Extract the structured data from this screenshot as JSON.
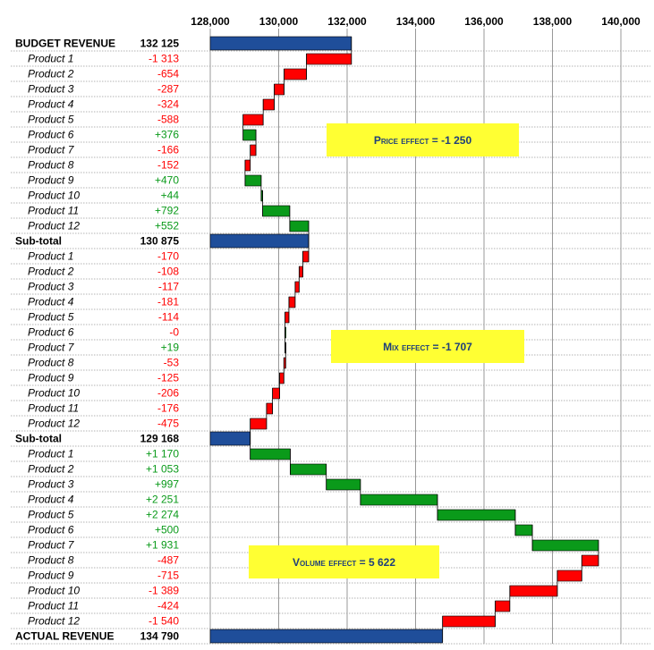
{
  "chart_data": {
    "type": "bar",
    "subtype": "waterfall",
    "x_ticks": [
      128000,
      130000,
      132000,
      134000,
      136000,
      138000,
      140000
    ],
    "x_tick_labels": [
      "128,000",
      "130,000",
      "132,000",
      "134,000",
      "136,000",
      "138,000",
      "140,000"
    ],
    "xlim": [
      128000,
      140000
    ],
    "colors": {
      "total": "#1f4e9a",
      "positive": "#0a9a1a",
      "negative": "#ff0000"
    },
    "rows": [
      {
        "label": "BUDGET REVENUE",
        "display": "132 125",
        "value": 132125,
        "kind": "total"
      },
      {
        "label": "Product 1",
        "display": "-1 313",
        "value": -1313,
        "kind": "delta"
      },
      {
        "label": "Product 2",
        "display": "-654",
        "value": -654,
        "kind": "delta"
      },
      {
        "label": "Product 3",
        "display": "-287",
        "value": -287,
        "kind": "delta"
      },
      {
        "label": "Product 4",
        "display": "-324",
        "value": -324,
        "kind": "delta"
      },
      {
        "label": "Product 5",
        "display": "-588",
        "value": -588,
        "kind": "delta"
      },
      {
        "label": "Product 6",
        "display": "+376",
        "value": 376,
        "kind": "delta"
      },
      {
        "label": "Product 7",
        "display": "-166",
        "value": -166,
        "kind": "delta"
      },
      {
        "label": "Product 8",
        "display": "-152",
        "value": -152,
        "kind": "delta"
      },
      {
        "label": "Product 9",
        "display": "+470",
        "value": 470,
        "kind": "delta"
      },
      {
        "label": "Product 10",
        "display": "+44",
        "value": 44,
        "kind": "delta"
      },
      {
        "label": "Product 11",
        "display": "+792",
        "value": 792,
        "kind": "delta"
      },
      {
        "label": "Product 12",
        "display": "+552",
        "value": 552,
        "kind": "delta"
      },
      {
        "label": "Sub-total",
        "display": "130 875",
        "value": 130875,
        "kind": "total"
      },
      {
        "label": "Product 1",
        "display": "-170",
        "value": -170,
        "kind": "delta"
      },
      {
        "label": "Product 2",
        "display": "-108",
        "value": -108,
        "kind": "delta"
      },
      {
        "label": "Product 3",
        "display": "-117",
        "value": -117,
        "kind": "delta"
      },
      {
        "label": "Product 4",
        "display": "-181",
        "value": -181,
        "kind": "delta"
      },
      {
        "label": "Product 5",
        "display": "-114",
        "value": -114,
        "kind": "delta"
      },
      {
        "label": "Product 6",
        "display": "-0",
        "value": 0,
        "kind": "delta"
      },
      {
        "label": "Product 7",
        "display": "+19",
        "value": 19,
        "kind": "delta"
      },
      {
        "label": "Product 8",
        "display": "-53",
        "value": -53,
        "kind": "delta"
      },
      {
        "label": "Product 9",
        "display": "-125",
        "value": -125,
        "kind": "delta"
      },
      {
        "label": "Product 10",
        "display": "-206",
        "value": -206,
        "kind": "delta"
      },
      {
        "label": "Product 11",
        "display": "-176",
        "value": -176,
        "kind": "delta"
      },
      {
        "label": "Product 12",
        "display": "-475",
        "value": -475,
        "kind": "delta"
      },
      {
        "label": "Sub-total",
        "display": "129 168",
        "value": 129168,
        "kind": "total"
      },
      {
        "label": "Product 1",
        "display": "+1 170",
        "value": 1170,
        "kind": "delta"
      },
      {
        "label": "Product 2",
        "display": "+1 053",
        "value": 1053,
        "kind": "delta"
      },
      {
        "label": "Product 3",
        "display": "+997",
        "value": 997,
        "kind": "delta"
      },
      {
        "label": "Product 4",
        "display": "+2 251",
        "value": 2251,
        "kind": "delta"
      },
      {
        "label": "Product 5",
        "display": "+2 274",
        "value": 2274,
        "kind": "delta"
      },
      {
        "label": "Product 6",
        "display": "+500",
        "value": 500,
        "kind": "delta"
      },
      {
        "label": "Product 7",
        "display": "+1 931",
        "value": 1931,
        "kind": "delta"
      },
      {
        "label": "Product 8",
        "display": "-487",
        "value": -487,
        "kind": "delta"
      },
      {
        "label": "Product 9",
        "display": "-715",
        "value": -715,
        "kind": "delta"
      },
      {
        "label": "Product 10",
        "display": "-1 389",
        "value": -1389,
        "kind": "delta"
      },
      {
        "label": "Product 11",
        "display": "-424",
        "value": -424,
        "kind": "delta"
      },
      {
        "label": "Product 12",
        "display": "-1 540",
        "value": -1540,
        "kind": "delta"
      },
      {
        "label": "ACTUAL REVENUE",
        "display": "134 790",
        "value": 134790,
        "kind": "total"
      }
    ],
    "annotations": [
      {
        "name": "price",
        "label": "Price effect = ",
        "value": "-1 250"
      },
      {
        "name": "mix",
        "label": "Mix effect = ",
        "value": "-1 707"
      },
      {
        "name": "volume",
        "label": "Volume effect = ",
        "value": "5 622"
      }
    ]
  }
}
